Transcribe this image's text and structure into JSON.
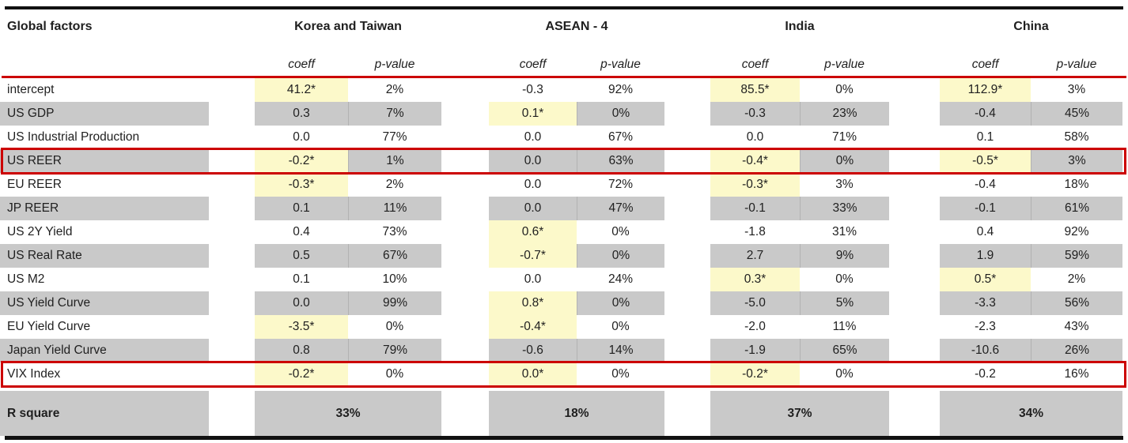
{
  "table": {
    "title": "Global factors",
    "groups": [
      {
        "label": "Korea and Taiwan"
      },
      {
        "label": "ASEAN - 4"
      },
      {
        "label": "India"
      },
      {
        "label": "China"
      }
    ],
    "col_headers": {
      "coeff": "coeff",
      "pvalue": "p-value"
    },
    "rows": [
      {
        "label": "intercept",
        "shaded": false,
        "bordered": false,
        "cells": [
          {
            "coeff": "41.2*",
            "p": "2%",
            "hl": true
          },
          {
            "coeff": "-0.3",
            "p": "92%",
            "hl": false
          },
          {
            "coeff": "85.5*",
            "p": "0%",
            "hl": true
          },
          {
            "coeff": "112.9*",
            "p": "3%",
            "hl": true
          }
        ]
      },
      {
        "label": "US GDP",
        "shaded": true,
        "bordered": false,
        "cells": [
          {
            "coeff": "0.3",
            "p": "7%",
            "hl": false
          },
          {
            "coeff": "0.1*",
            "p": "0%",
            "hl": true
          },
          {
            "coeff": "-0.3",
            "p": "23%",
            "hl": false
          },
          {
            "coeff": "-0.4",
            "p": "45%",
            "hl": false
          }
        ]
      },
      {
        "label": "US Industrial Production",
        "shaded": false,
        "bordered": false,
        "cells": [
          {
            "coeff": "0.0",
            "p": "77%",
            "hl": false
          },
          {
            "coeff": "0.0",
            "p": "67%",
            "hl": false
          },
          {
            "coeff": "0.0",
            "p": "71%",
            "hl": false
          },
          {
            "coeff": "0.1",
            "p": "58%",
            "hl": false
          }
        ]
      },
      {
        "label": "US REER",
        "shaded": true,
        "bordered": true,
        "cells": [
          {
            "coeff": "-0.2*",
            "p": "1%",
            "hl": true
          },
          {
            "coeff": "0.0",
            "p": "63%",
            "hl": false
          },
          {
            "coeff": "-0.4*",
            "p": "0%",
            "hl": true
          },
          {
            "coeff": "-0.5*",
            "p": "3%",
            "hl": true
          }
        ]
      },
      {
        "label": "EU REER",
        "shaded": false,
        "bordered": false,
        "cells": [
          {
            "coeff": "-0.3*",
            "p": "2%",
            "hl": true
          },
          {
            "coeff": "0.0",
            "p": "72%",
            "hl": false
          },
          {
            "coeff": "-0.3*",
            "p": "3%",
            "hl": true
          },
          {
            "coeff": "-0.4",
            "p": "18%",
            "hl": false
          }
        ]
      },
      {
        "label": "JP REER",
        "shaded": true,
        "bordered": false,
        "cells": [
          {
            "coeff": "0.1",
            "p": "11%",
            "hl": false
          },
          {
            "coeff": "0.0",
            "p": "47%",
            "hl": false
          },
          {
            "coeff": "-0.1",
            "p": "33%",
            "hl": false
          },
          {
            "coeff": "-0.1",
            "p": "61%",
            "hl": false
          }
        ]
      },
      {
        "label": "US 2Y Yield",
        "shaded": false,
        "bordered": false,
        "cells": [
          {
            "coeff": "0.4",
            "p": "73%",
            "hl": false
          },
          {
            "coeff": "0.6*",
            "p": "0%",
            "hl": true
          },
          {
            "coeff": "-1.8",
            "p": "31%",
            "hl": false
          },
          {
            "coeff": "0.4",
            "p": "92%",
            "hl": false
          }
        ]
      },
      {
        "label": "US Real Rate",
        "shaded": true,
        "bordered": false,
        "cells": [
          {
            "coeff": "0.5",
            "p": "67%",
            "hl": false
          },
          {
            "coeff": "-0.7*",
            "p": "0%",
            "hl": true
          },
          {
            "coeff": "2.7",
            "p": "9%",
            "hl": false
          },
          {
            "coeff": "1.9",
            "p": "59%",
            "hl": false
          }
        ]
      },
      {
        "label": "US M2",
        "shaded": false,
        "bordered": false,
        "cells": [
          {
            "coeff": "0.1",
            "p": "10%",
            "hl": false
          },
          {
            "coeff": "0.0",
            "p": "24%",
            "hl": false
          },
          {
            "coeff": "0.3*",
            "p": "0%",
            "hl": true
          },
          {
            "coeff": "0.5*",
            "p": "2%",
            "hl": true
          }
        ]
      },
      {
        "label": "US Yield Curve",
        "shaded": true,
        "bordered": false,
        "cells": [
          {
            "coeff": "0.0",
            "p": "99%",
            "hl": false
          },
          {
            "coeff": "0.8*",
            "p": "0%",
            "hl": true
          },
          {
            "coeff": "-5.0",
            "p": "5%",
            "hl": false
          },
          {
            "coeff": "-3.3",
            "p": "56%",
            "hl": false
          }
        ]
      },
      {
        "label": "EU Yield Curve",
        "shaded": false,
        "bordered": false,
        "cells": [
          {
            "coeff": "-3.5*",
            "p": "0%",
            "hl": true
          },
          {
            "coeff": "-0.4*",
            "p": "0%",
            "hl": true
          },
          {
            "coeff": "-2.0",
            "p": "11%",
            "hl": false
          },
          {
            "coeff": "-2.3",
            "p": "43%",
            "hl": false
          }
        ]
      },
      {
        "label": "Japan Yield Curve",
        "shaded": true,
        "bordered": false,
        "cells": [
          {
            "coeff": "0.8",
            "p": "79%",
            "hl": false
          },
          {
            "coeff": "-0.6",
            "p": "14%",
            "hl": false
          },
          {
            "coeff": "-1.9",
            "p": "65%",
            "hl": false
          },
          {
            "coeff": "-10.6",
            "p": "26%",
            "hl": false
          }
        ]
      },
      {
        "label": "VIX Index",
        "shaded": false,
        "bordered": true,
        "cells": [
          {
            "coeff": "-0.2*",
            "p": "0%",
            "hl": true
          },
          {
            "coeff": "0.0*",
            "p": "0%",
            "hl": true
          },
          {
            "coeff": "-0.2*",
            "p": "0%",
            "hl": true
          },
          {
            "coeff": "-0.2",
            "p": "16%",
            "hl": false
          }
        ]
      }
    ],
    "footer": {
      "label": "R square",
      "values": [
        "33%",
        "18%",
        "37%",
        "34%"
      ]
    },
    "colors": {
      "shaded_gray": "#c9c9c9",
      "highlight_yellow": "#fcf9ca",
      "border_red": "#cc0000",
      "rule_black": "#111111"
    }
  }
}
